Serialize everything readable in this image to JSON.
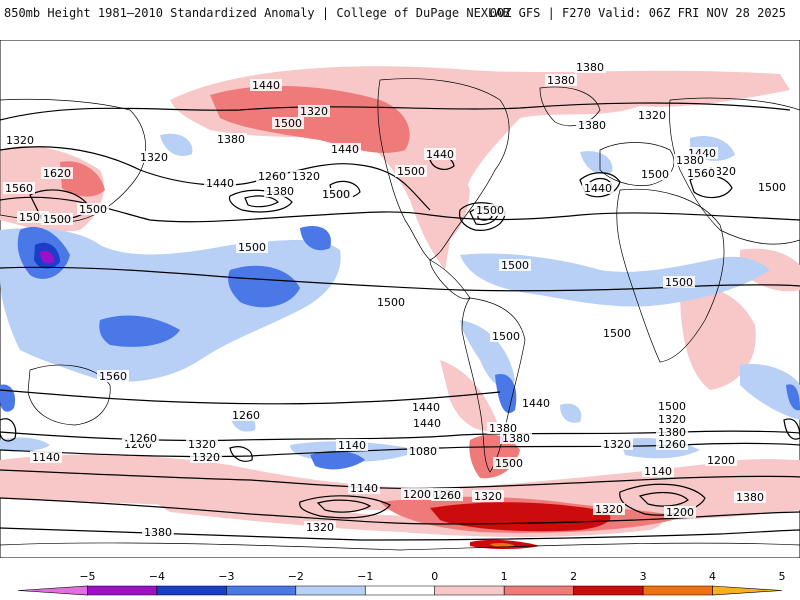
{
  "header": {
    "left_title": "850mb Height 1981–2010 Standardized Anomaly | College of DuPage NEXLAB",
    "right_title": "00Z GFS | F270 Valid: 06Z FRI NOV 28 2025"
  },
  "colors": {
    "neg5": "#e070e0",
    "neg4": "#9c10c8",
    "neg3": "#1a3ec8",
    "neg2": "#4a78e6",
    "neg1": "#b8d0f6",
    "zero": "#ffffff",
    "pos1": "#f8c8c8",
    "pos2": "#ee7a7a",
    "pos3": "#cc0c0c",
    "pos4": "#f07010",
    "pos5": "#f6b020",
    "contour": "#000000",
    "coast": "#000000"
  },
  "contours": {
    "labels": [
      "1380",
      "1440",
      "1380",
      "1320",
      "1320",
      "1500",
      "1380",
      "1320",
      "1440",
      "1380",
      "1440",
      "1320",
      "1620",
      "1560",
      "1500",
      "1500",
      "1440",
      "1380",
      "1260",
      "1320",
      "1500",
      "1500",
      "1440",
      "1440",
      "1500",
      "1380",
      "1320",
      "1560",
      "1500",
      "1500",
      "1500",
      "1500",
      "1500",
      "1500",
      "1500",
      "1500",
      "1500",
      "1500",
      "1560",
      "1440",
      "1500",
      "1440",
      "1380",
      "1380",
      "1260",
      "1200",
      "1260",
      "1320",
      "1320",
      "1140",
      "1200",
      "1140",
      "1080",
      "1320",
      "1500",
      "1440",
      "1320",
      "1380",
      "1260",
      "1200",
      "1140",
      "1260",
      "1140",
      "1200",
      "1260",
      "1320",
      "1320",
      "1320",
      "1380",
      "1380"
    ]
  },
  "colorbar": {
    "ticks": [
      "−5",
      "−4",
      "−3",
      "−2",
      "−1",
      "0",
      "1",
      "2",
      "3",
      "4",
      "5"
    ]
  }
}
